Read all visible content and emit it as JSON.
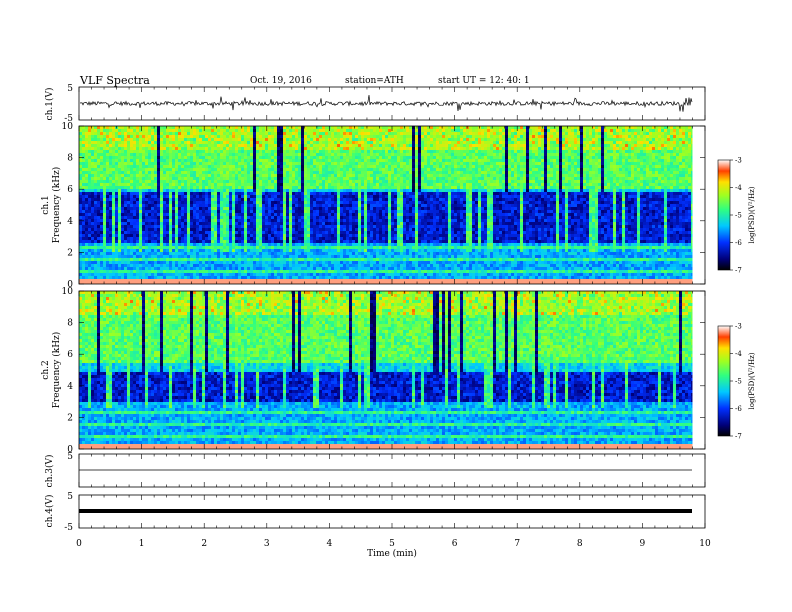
{
  "header": {
    "title": "VLF Spectra",
    "date": "Oct. 19, 2016",
    "station": "station=ATH",
    "start": "start  UT =    12: 40: 1"
  },
  "chart_data": [
    {
      "type": "line",
      "name": "ch1-waveform",
      "ylabel": "ch.1(V)",
      "ylim": [
        -5,
        5
      ],
      "y_ticks": [
        "5",
        "-5"
      ],
      "baseline": 0,
      "amplitude_typical": 1.2
    },
    {
      "type": "heatmap",
      "name": "ch1-spectrogram",
      "ylabel_lines": [
        "ch.1",
        "Frequency  (kHz)"
      ],
      "ylim": [
        0,
        10
      ],
      "y_ticks": [
        "0",
        "2",
        "4",
        "6",
        "8",
        "10"
      ],
      "colorbar": {
        "label": "log(PSD)(V²/Hz)",
        "range": [
          -7,
          -3
        ],
        "ticks": [
          "-3",
          "-4",
          "-5",
          "-6",
          "-7"
        ]
      },
      "quiet_band_kHz": [
        2.6,
        5.8
      ],
      "activity_lower_kHz": 6.0
    },
    {
      "type": "heatmap",
      "name": "ch2-spectrogram",
      "ylabel_lines": [
        "ch.2",
        "Frequency  (kHz)"
      ],
      "ylim": [
        0,
        10
      ],
      "y_ticks": [
        "0",
        "2",
        "4",
        "6",
        "8",
        "10"
      ],
      "colorbar": {
        "label": "log(PSD)(V²/Hz)",
        "range": [
          -7,
          -3
        ],
        "ticks": [
          "-3",
          "-4",
          "-5",
          "-6",
          "-7"
        ]
      },
      "quiet_band_kHz": [
        3.0,
        4.8
      ],
      "activity_lower_kHz": 5.5
    },
    {
      "type": "line",
      "name": "ch3-waveform",
      "ylabel": "ch.3(V)",
      "ylim": [
        -5,
        5
      ],
      "y_ticks": [
        "5"
      ],
      "baseline": 0
    },
    {
      "type": "line",
      "name": "ch4-waveform",
      "ylabel": "ch.4(V)",
      "ylim": [
        -5,
        5
      ],
      "y_ticks": [
        "5",
        "-5"
      ],
      "baseline": 0
    }
  ],
  "x_axis": {
    "label": "Time  (min)",
    "xlim": [
      0,
      10
    ],
    "ticks": [
      "0",
      "1",
      "2",
      "3",
      "4",
      "5",
      "6",
      "7",
      "8",
      "9",
      "10"
    ],
    "data_end_min": 9.8
  }
}
